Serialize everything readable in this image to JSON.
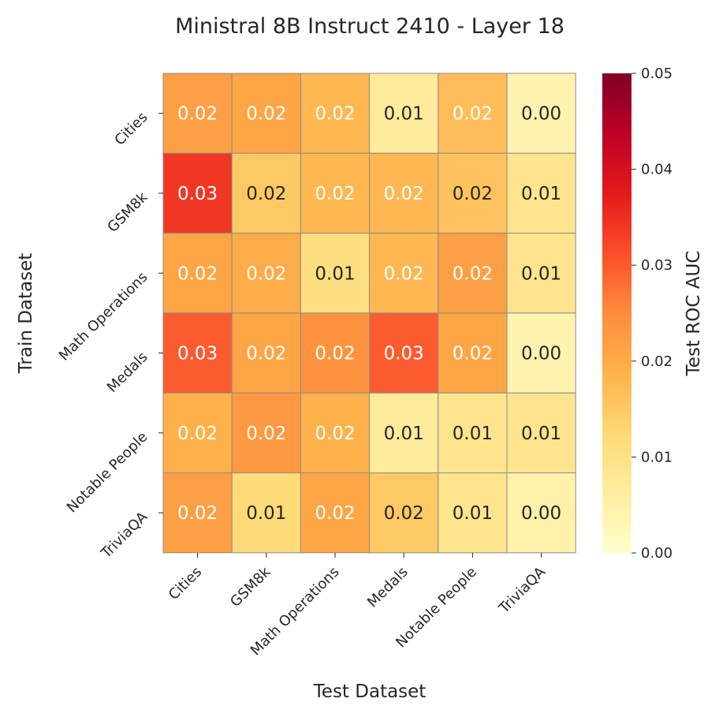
{
  "chart_data": {
    "type": "heatmap",
    "title": "Ministral 8B Instruct 2410 - Layer 18",
    "xlabel": "Test Dataset",
    "ylabel": "Train Dataset",
    "x_categories": [
      "Cities",
      "GSM8k",
      "Math Operations",
      "Medals",
      "Notable People",
      "TriviaQA"
    ],
    "y_categories": [
      "Cities",
      "GSM8k",
      "Math Operations",
      "Medals",
      "Notable People",
      "TriviaQA"
    ],
    "values": [
      [
        0.022,
        0.021,
        0.018,
        0.007,
        0.017,
        0.004
      ],
      [
        0.034,
        0.015,
        0.018,
        0.018,
        0.016,
        0.009
      ],
      [
        0.021,
        0.02,
        0.011,
        0.018,
        0.022,
        0.009
      ],
      [
        0.03,
        0.021,
        0.024,
        0.03,
        0.021,
        0.004
      ],
      [
        0.019,
        0.023,
        0.019,
        0.007,
        0.009,
        0.009
      ],
      [
        0.022,
        0.012,
        0.021,
        0.015,
        0.009,
        0.005
      ]
    ],
    "cell_labels": [
      [
        "0.02",
        "0.02",
        "0.02",
        "0.01",
        "0.02",
        "0.00"
      ],
      [
        "0.03",
        "0.02",
        "0.02",
        "0.02",
        "0.02",
        "0.01"
      ],
      [
        "0.02",
        "0.02",
        "0.01",
        "0.02",
        "0.02",
        "0.01"
      ],
      [
        "0.03",
        "0.02",
        "0.02",
        "0.03",
        "0.02",
        "0.00"
      ],
      [
        "0.02",
        "0.02",
        "0.02",
        "0.01",
        "0.01",
        "0.01"
      ],
      [
        "0.02",
        "0.01",
        "0.02",
        "0.02",
        "0.01",
        "0.00"
      ]
    ],
    "colorbar": {
      "label": "Test ROC AUC",
      "range": [
        0.0,
        0.05
      ],
      "ticks": [
        "0.00",
        "0.01",
        "0.02",
        "0.03",
        "0.04",
        "0.05"
      ],
      "colormap": "YlOrRd"
    }
  }
}
